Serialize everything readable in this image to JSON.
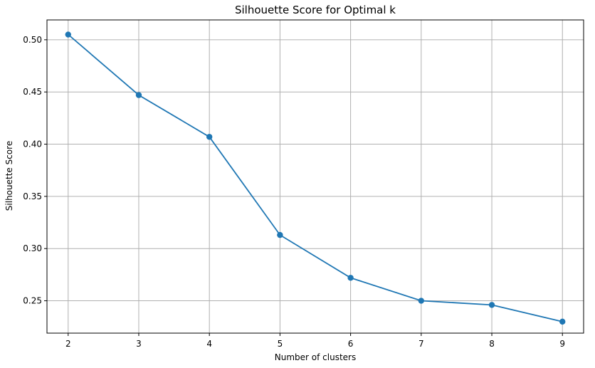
{
  "chart_data": {
    "type": "line",
    "title": "Silhouette Score for Optimal k",
    "xlabel": "Number of clusters",
    "ylabel": "Silhouette Score",
    "x": [
      2,
      3,
      4,
      5,
      6,
      7,
      8,
      9
    ],
    "series": [
      {
        "values": [
          0.505,
          0.447,
          0.407,
          0.313,
          0.272,
          0.25,
          0.246,
          0.23
        ],
        "color": "#1f77b4",
        "marker": "circle"
      }
    ],
    "xticks": [
      2,
      3,
      4,
      5,
      6,
      7,
      8,
      9
    ],
    "yticks": [
      0.25,
      0.3,
      0.35,
      0.4,
      0.45,
      0.5
    ],
    "xlim": [
      1.7,
      9.3
    ],
    "ylim": [
      0.219,
      0.519
    ],
    "grid": true,
    "legend": "none"
  }
}
